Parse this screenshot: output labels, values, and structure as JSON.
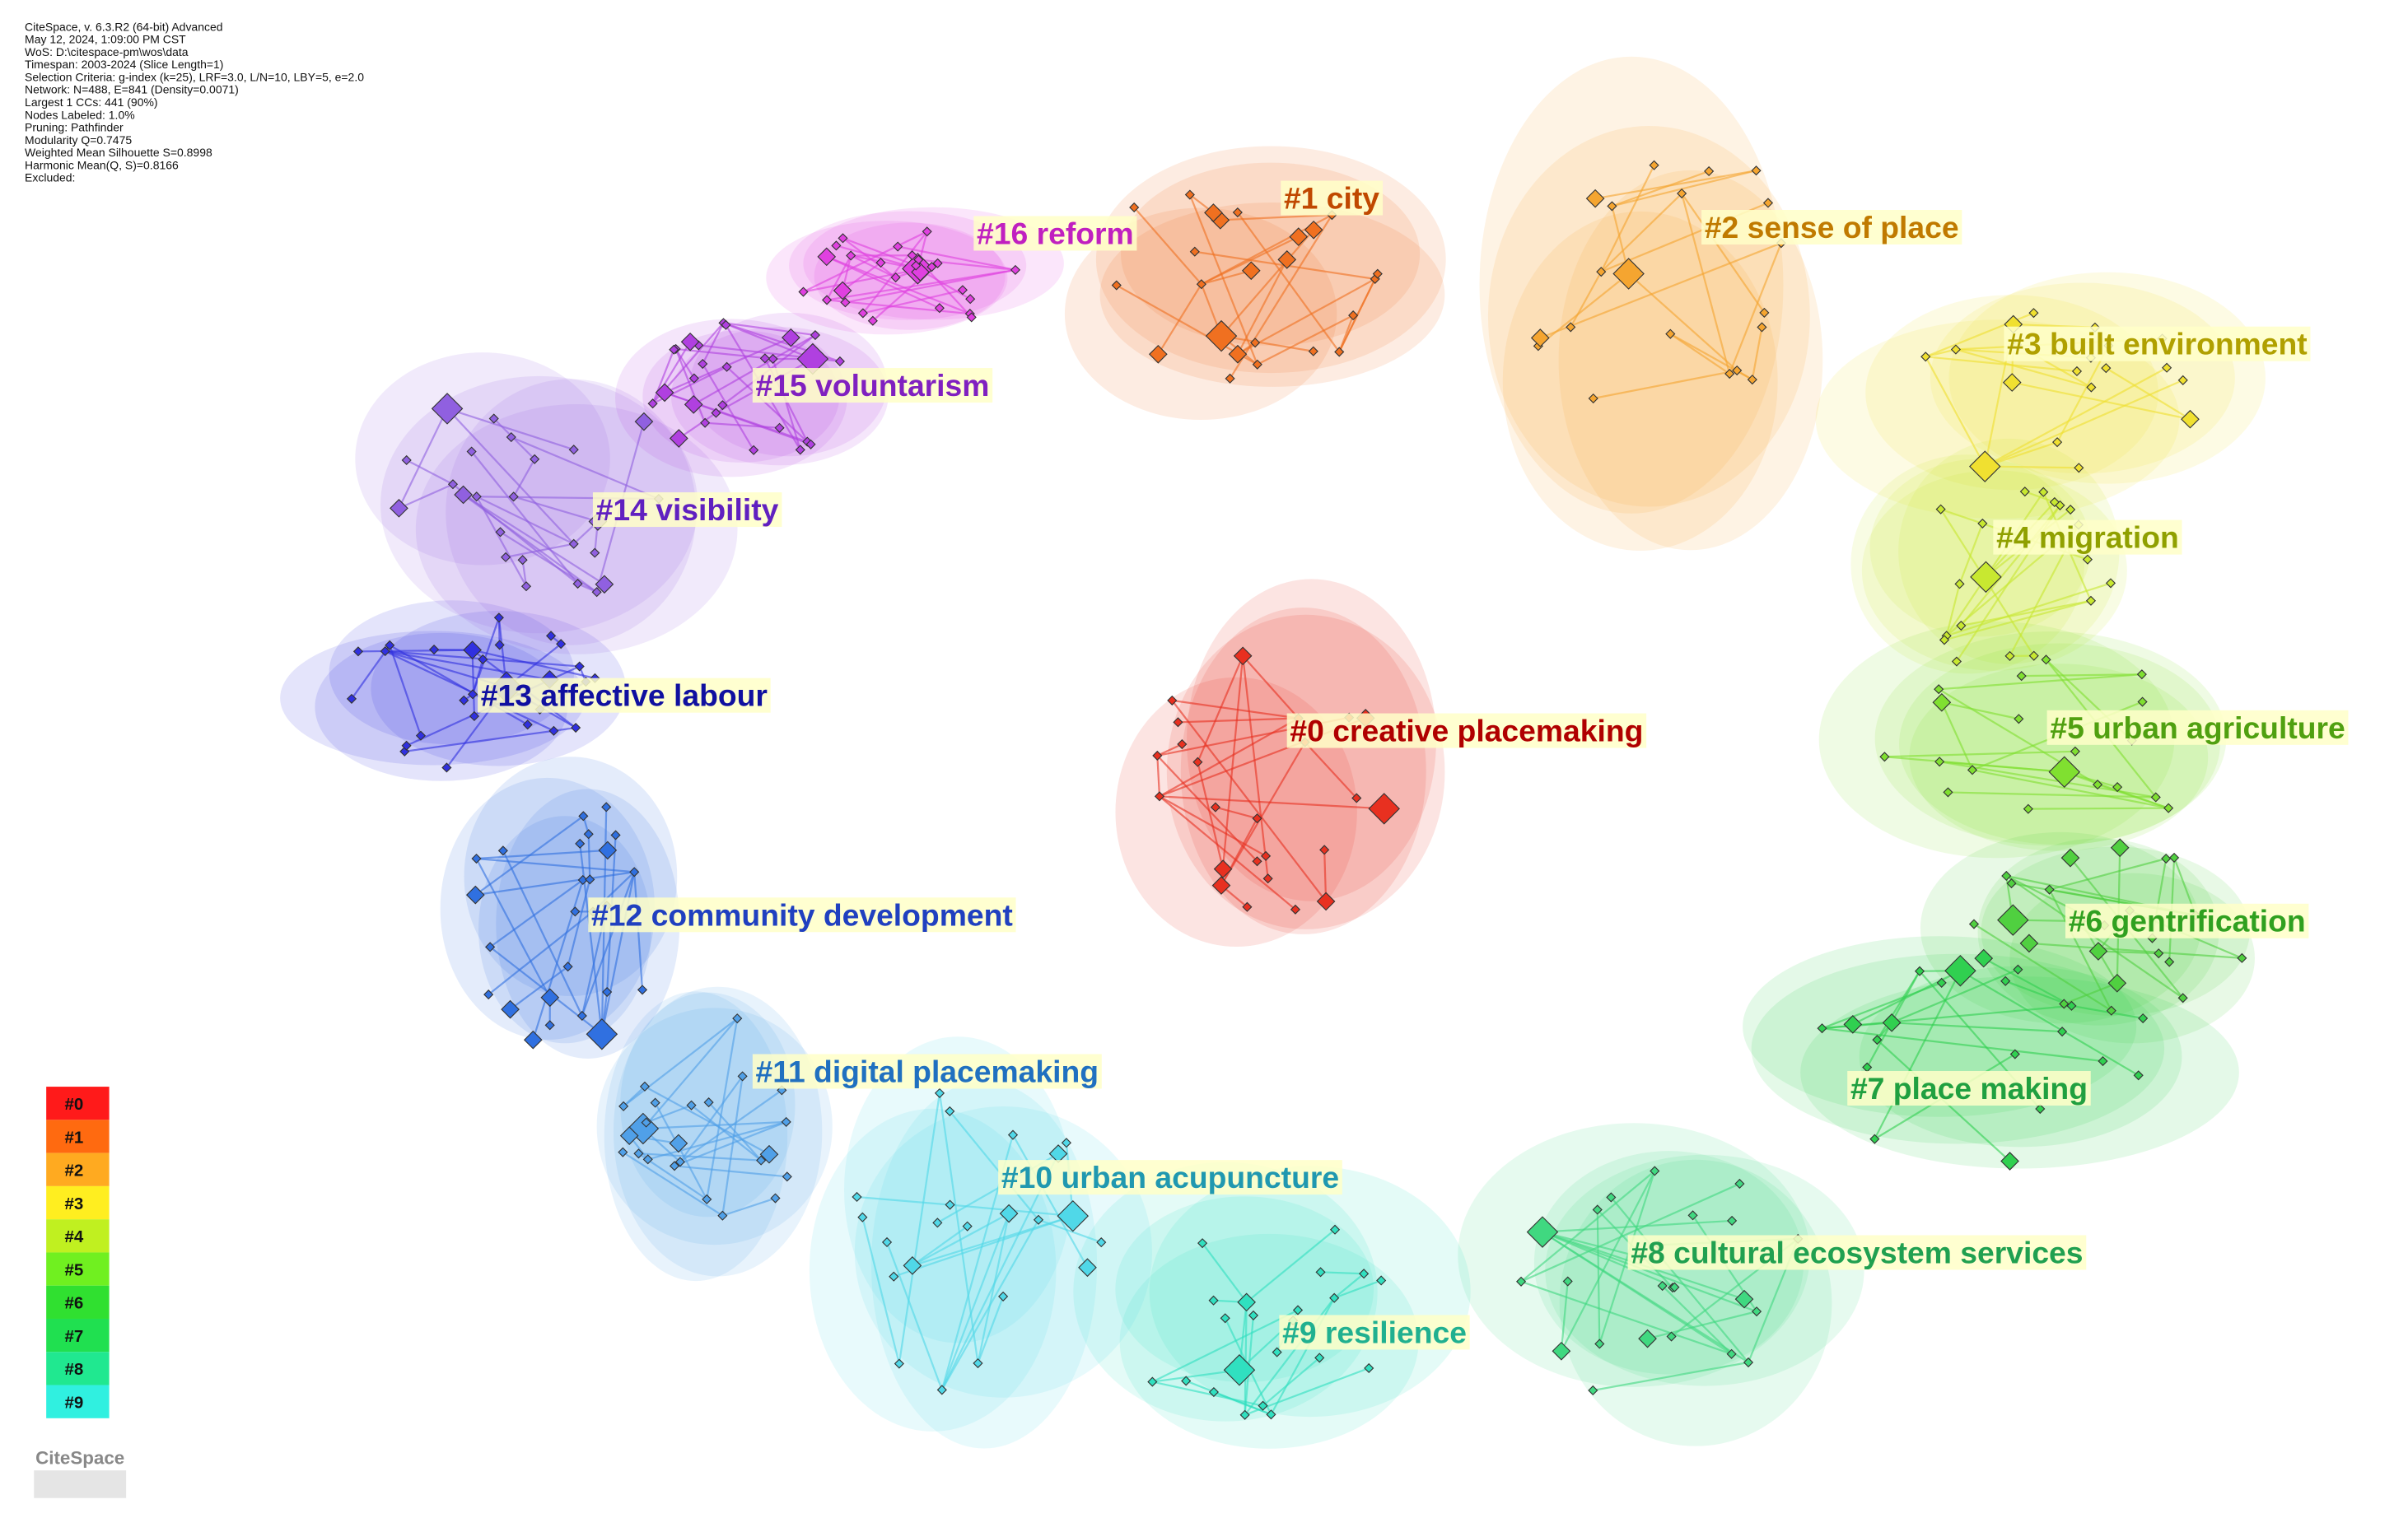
{
  "header": {
    "lines": [
      "CiteSpace, v. 6.3.R2 (64-bit) Advanced",
      "May 12, 2024, 1:09:00 PM CST",
      "WoS: D:\\citespace-pm\\wos\\data",
      "Timespan: 2003-2024 (Slice Length=1)",
      "Selection Criteria: g-index (k=25), LRF=3.0, L/N=10, LBY=5, e=2.0",
      "Network: N=488, E=841 (Density=0.0071)",
      "Largest 1 CCs: 441 (90%)",
      "Nodes Labeled: 1.0%",
      "Pruning: Pathfinder",
      "Modularity Q=0.7475",
      "Weighted Mean Silhouette S=0.8998",
      "Harmonic Mean(Q, S)=0.8166",
      "Excluded:"
    ]
  },
  "clusters": [
    {
      "label": "#0 creative placemaking",
      "color": "#e83020",
      "text_color": "#b00000"
    },
    {
      "label": "#1 city",
      "color": "#f07020",
      "text_color": "#c04800"
    },
    {
      "label": "#2 sense of place",
      "color": "#f5a530",
      "text_color": "#c07a00"
    },
    {
      "label": "#3 built environment",
      "color": "#f0e030",
      "text_color": "#b0a000"
    },
    {
      "label": "#4 migration",
      "color": "#c8e830",
      "text_color": "#90a000"
    },
    {
      "label": "#5 urban agriculture",
      "color": "#80e030",
      "text_color": "#50a010"
    },
    {
      "label": "#6 gentrification",
      "color": "#50d040",
      "text_color": "#30a020"
    },
    {
      "label": "#7 place making",
      "color": "#30d050",
      "text_color": "#20a040"
    },
    {
      "label": "#8 cultural ecosystem services",
      "color": "#40d880",
      "text_color": "#20a050"
    },
    {
      "label": "#9 resilience",
      "color": "#30e0c0",
      "text_color": "#20b090"
    },
    {
      "label": "#10 urban acupuncture",
      "color": "#50d8e8",
      "text_color": "#2098b0"
    },
    {
      "label": "#11 digital placemaking",
      "color": "#50a0e8",
      "text_color": "#2070c0"
    },
    {
      "label": "#12 community development",
      "color": "#3070e0",
      "text_color": "#2040c0"
    },
    {
      "label": "#13 affective labour",
      "color": "#3030e0",
      "text_color": "#1010a0"
    },
    {
      "label": "#14 visibility",
      "color": "#9060e0",
      "text_color": "#6020c0"
    },
    {
      "label": "#15 voluntarism",
      "color": "#b040e0",
      "text_color": "#8020c0"
    },
    {
      "label": "#16 reform",
      "color": "#e040e0",
      "text_color": "#c020c0"
    }
  ],
  "legend": [
    {
      "label": "#0",
      "color": "#ff1a1a"
    },
    {
      "label": "#1",
      "color": "#ff6a10"
    },
    {
      "label": "#2",
      "color": "#ffaa20"
    },
    {
      "label": "#3",
      "color": "#ffee20"
    },
    {
      "label": "#4",
      "color": "#c0f020"
    },
    {
      "label": "#5",
      "color": "#70f020"
    },
    {
      "label": "#6",
      "color": "#30e030"
    },
    {
      "label": "#7",
      "color": "#20e050"
    },
    {
      "label": "#8",
      "color": "#20e890"
    },
    {
      "label": "#9",
      "color": "#30f0e0"
    }
  ],
  "logo": {
    "text": "CiteSpace"
  }
}
